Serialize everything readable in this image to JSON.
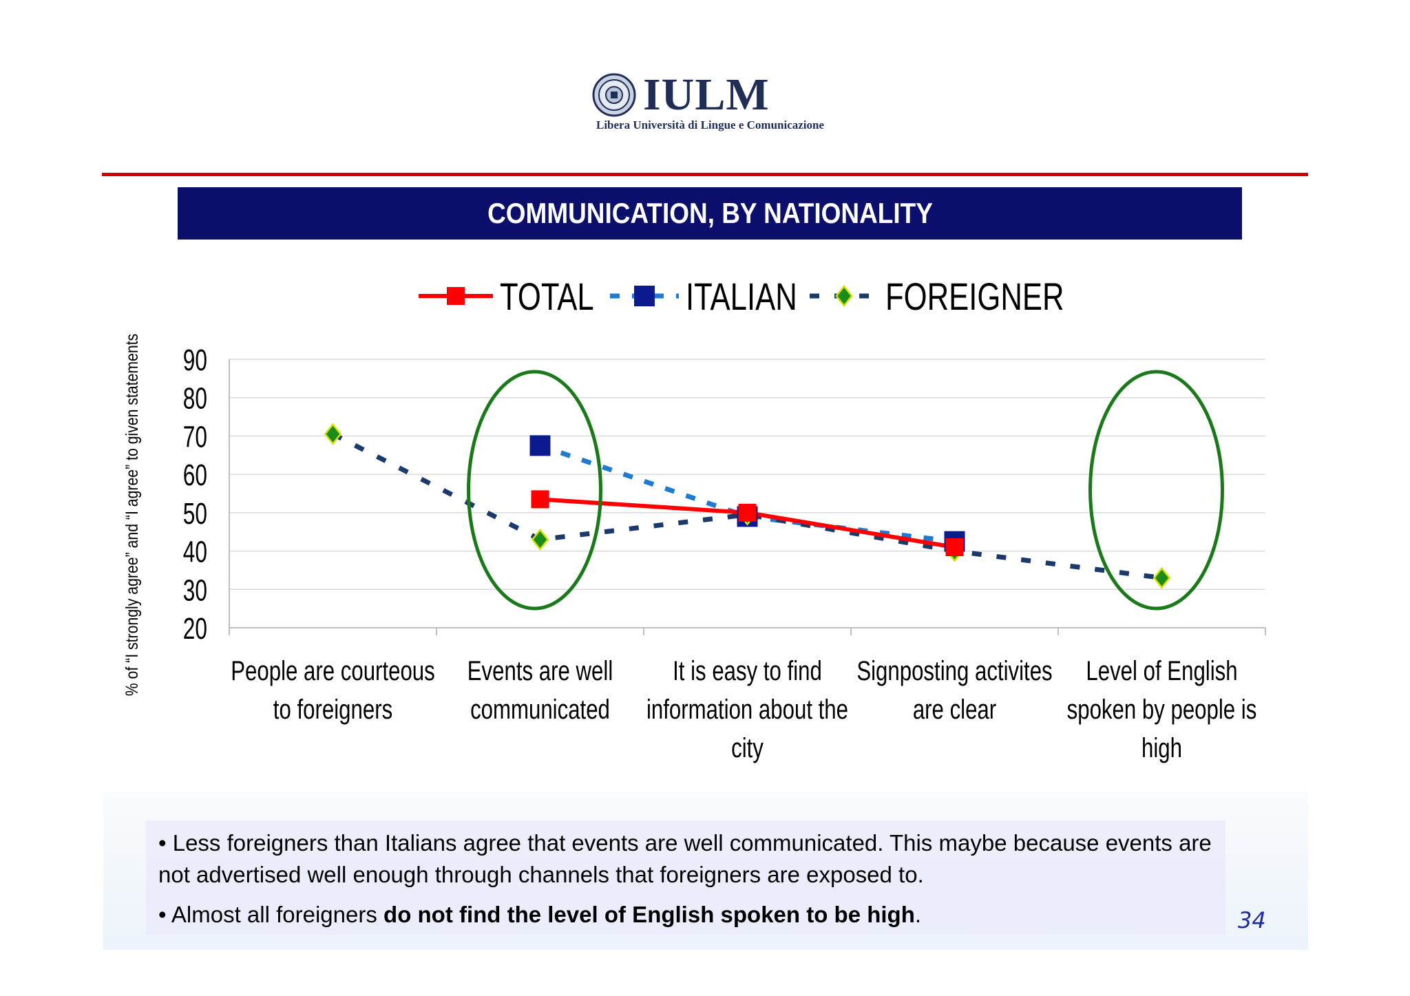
{
  "logo": {
    "name": "IULM",
    "subtitle": "Libera Università di Lingue e Comunicazione"
  },
  "title": "COMMUNICATION, BY NATIONALITY",
  "colors": {
    "total": "#ff0000",
    "italian": "#0b1a8c",
    "italian_line": "#1f7bd1",
    "foreigner": "#1a8c1a",
    "foreigner_line": "#1b3a6b",
    "title_bar": "#0b0f6b",
    "rule": "#d00000",
    "highlight_ellipse": "#1a7a1a"
  },
  "chart_data": {
    "type": "line",
    "ylabel": "% of “I strongly agree” and “I agree” to given statements",
    "ylim": [
      20,
      90
    ],
    "yticks": [
      "90",
      "80",
      "70",
      "60",
      "50",
      "40",
      "30",
      "20"
    ],
    "grid": true,
    "legend_position": "top",
    "categories": [
      [
        "People are courteous",
        "to foreigners"
      ],
      [
        "Events are well",
        "communicated"
      ],
      [
        "It is easy to find",
        "information about the",
        "city"
      ],
      [
        "Signposting activites",
        "are clear"
      ],
      [
        "Level of English",
        "spoken by people is",
        "high"
      ]
    ],
    "series": [
      {
        "name": "TOTAL",
        "values": [
          null,
          53.5,
          50,
          41,
          null
        ]
      },
      {
        "name": "ITALIAN",
        "values": [
          null,
          67.5,
          49,
          42.5,
          null
        ]
      },
      {
        "name": "FOREIGNER",
        "values": [
          70.5,
          43,
          49.5,
          40,
          33
        ]
      }
    ],
    "highlighted_categories": [
      1,
      4
    ]
  },
  "notes": {
    "line1": "• Less foreigners than Italians agree that events are well communicated. This maybe because events are not advertised well enough through channels that foreigners are exposed to.",
    "line2_prefix": "• Almost all foreigners ",
    "line2_bold": "do not find the level of English spoken to be high",
    "line2_suffix": "."
  },
  "page_number": "34"
}
